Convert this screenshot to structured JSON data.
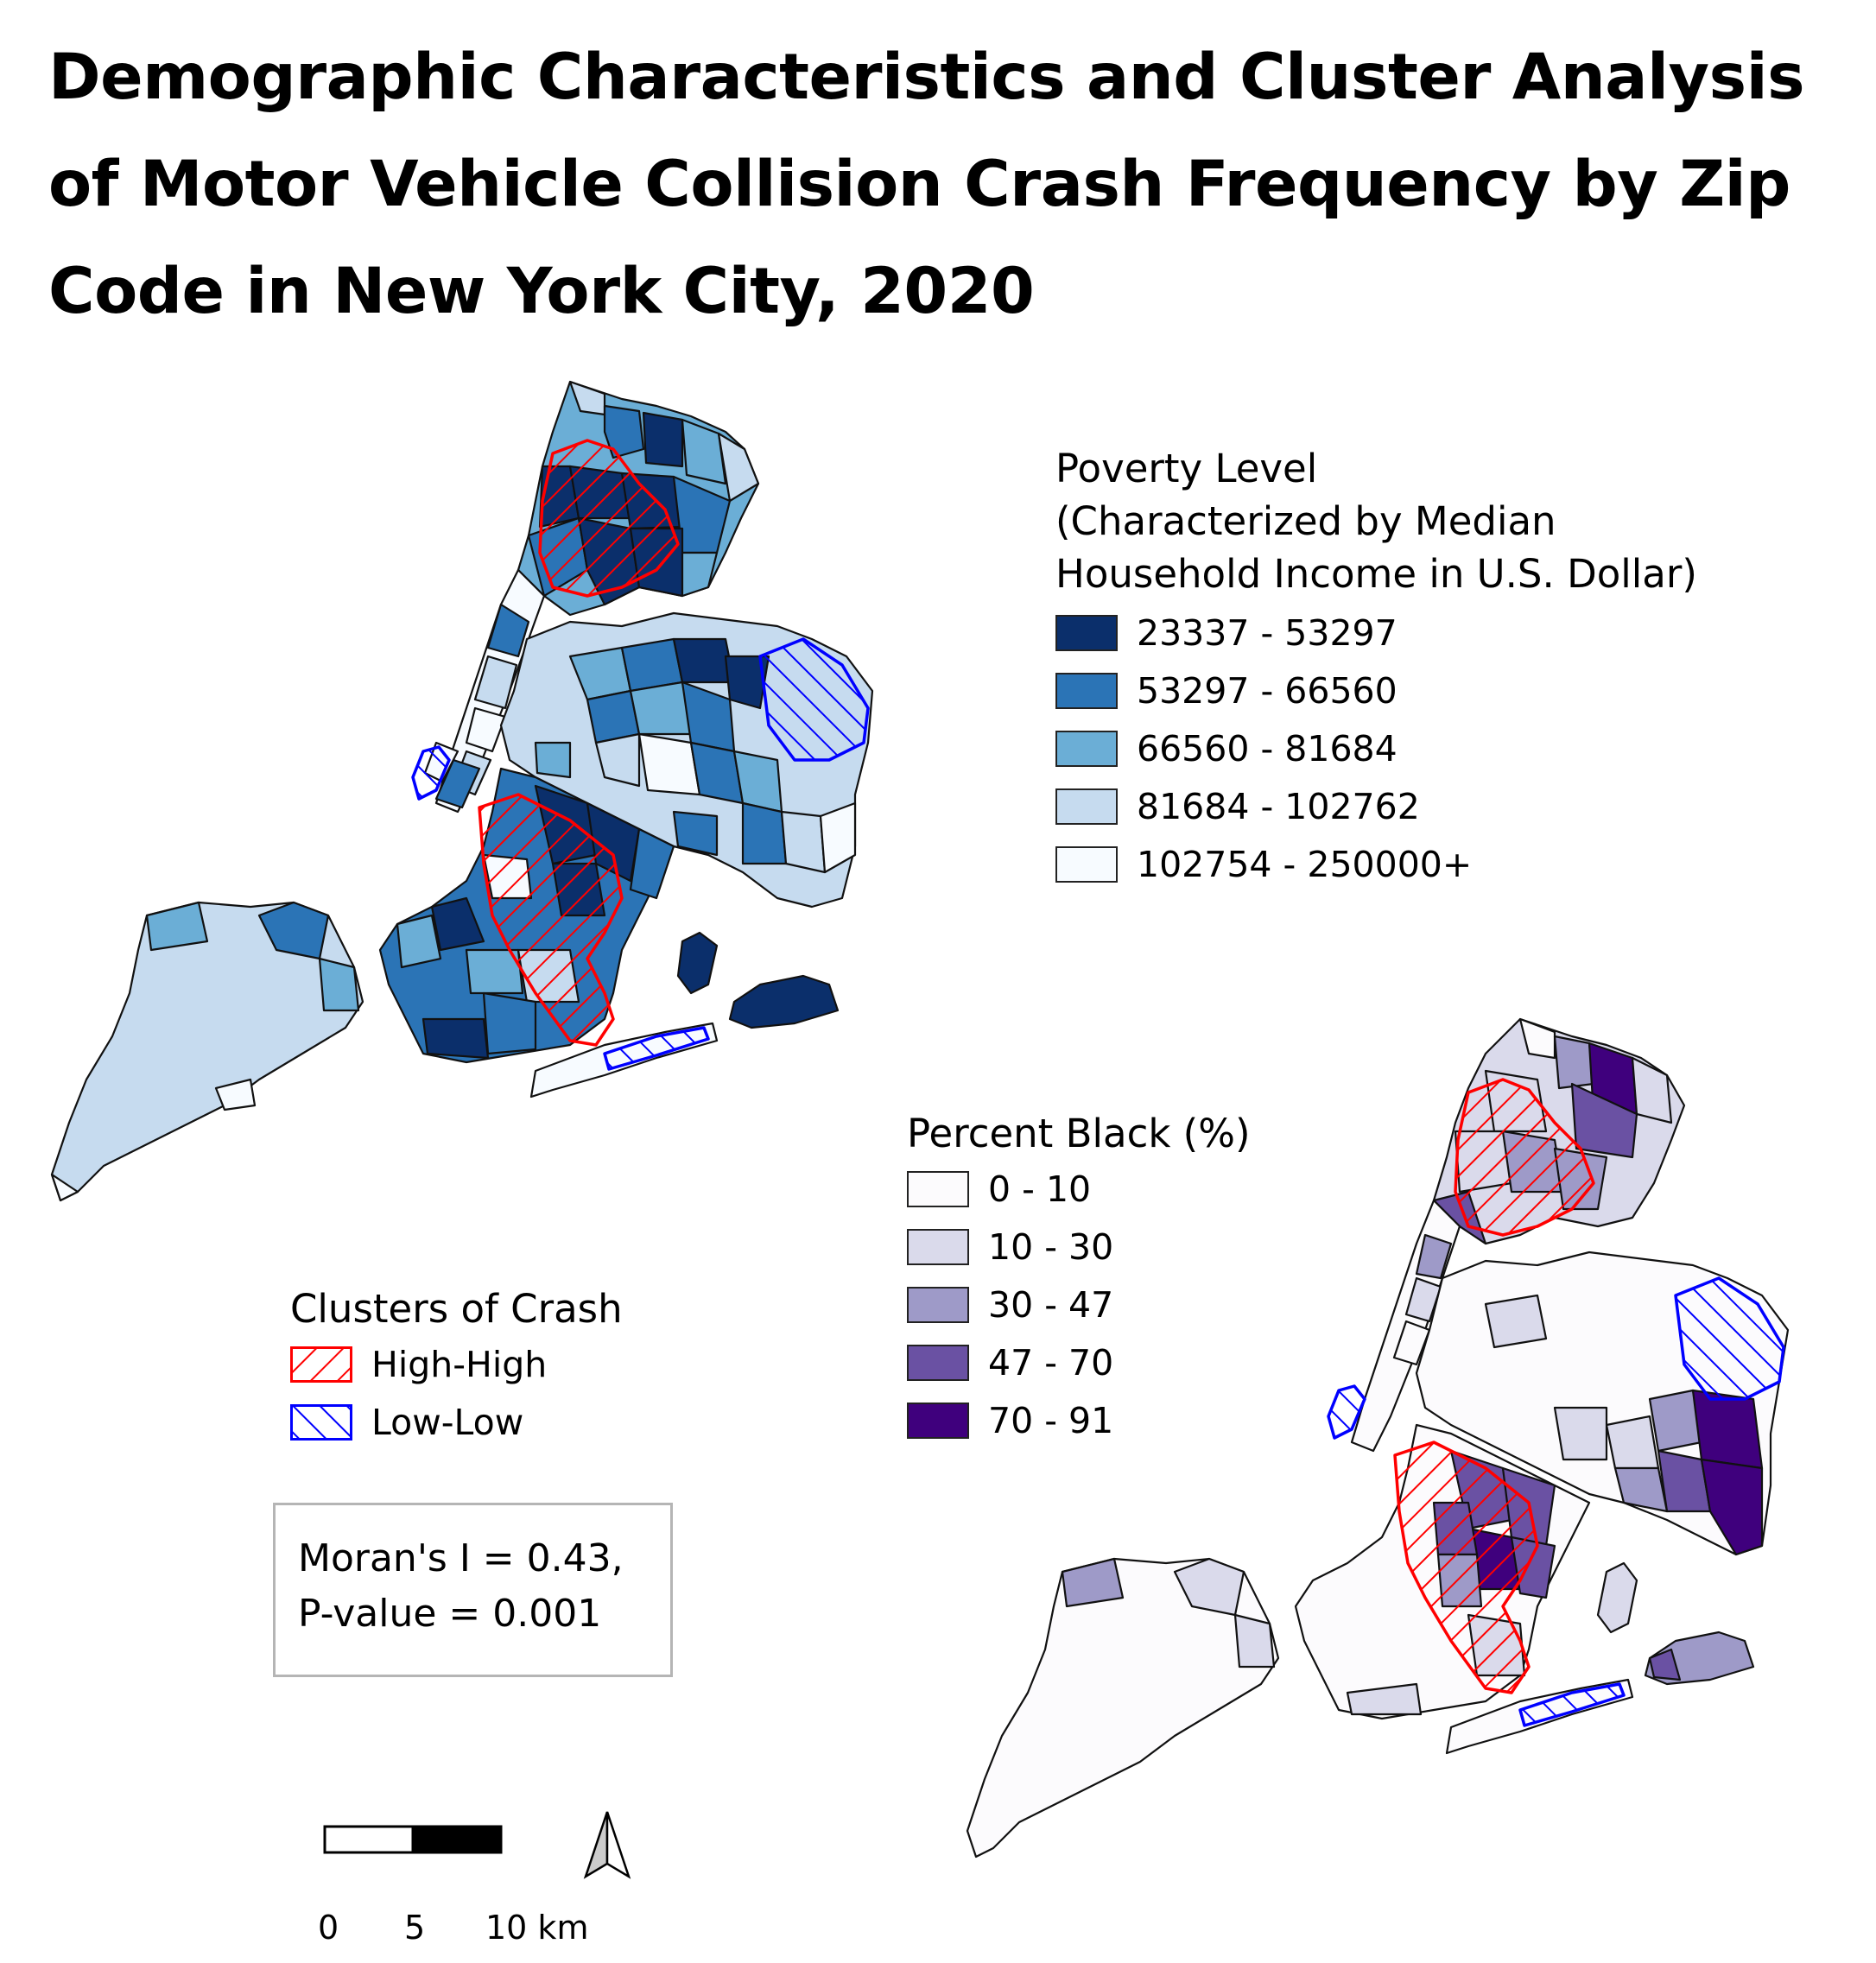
{
  "title": "Demographic Characteristics and Cluster Analysis of Motor Vehicle Collision Crash Frequency by Zip Code in New York City, 2020",
  "poverty_legend": {
    "title_lines": [
      "Poverty Level",
      "(Characterized by Median",
      "Household Income in U.S. Dollar)"
    ],
    "classes": [
      {
        "label": "23337 - 53297",
        "color": "#0b2f6b"
      },
      {
        "label": "53297 - 66560",
        "color": "#2b74b6"
      },
      {
        "label": "66560 - 81684",
        "color": "#6baed6"
      },
      {
        "label": "81684 - 102762",
        "color": "#c6dbef"
      },
      {
        "label": "102754 - 250000+",
        "color": "#f7fbff"
      }
    ]
  },
  "black_legend": {
    "title": "Percent Black (%)",
    "classes": [
      {
        "label": "0 - 10",
        "color": "#fcfbfd"
      },
      {
        "label": "10 - 30",
        "color": "#dadaeb"
      },
      {
        "label": "30 - 47",
        "color": "#9e9ac8"
      },
      {
        "label": "47 - 70",
        "color": "#6a51a3"
      },
      {
        "label": "70 - 91",
        "color": "#3f007d"
      }
    ]
  },
  "cluster_legend": {
    "title": "Clusters of Crash",
    "items": [
      {
        "label": "High-High",
        "color": "#ff0000"
      },
      {
        "label": "Low-Low",
        "color": "#0000ff"
      }
    ]
  },
  "stats": {
    "line1": "Moran's I = 0.43,",
    "line2": "P-value = 0.001"
  },
  "scale_bar": {
    "labels": [
      "0",
      "5",
      "10 km"
    ]
  }
}
